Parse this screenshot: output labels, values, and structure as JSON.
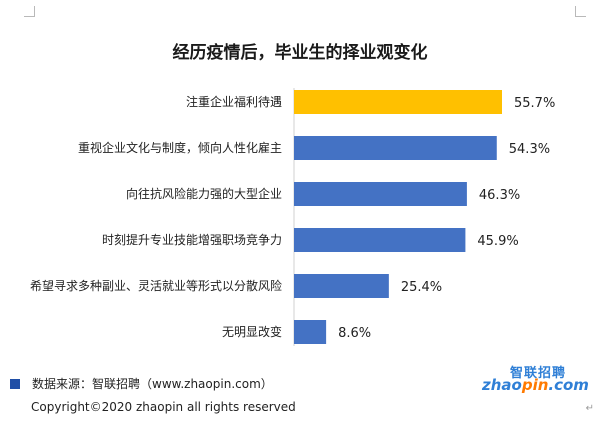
{
  "title": "经历疫情后，毕业生的择业观变化",
  "chart_data": {
    "type": "bar",
    "orientation": "horizontal",
    "categories": [
      "注重企业福利待遇",
      "重视企业文化与制度，倾向人性化雇主",
      "向往抗风险能力强的大型企业",
      "时刻提升专业技能增强职场竞争力",
      "希望寻求多种副业、灵活就业等形式以分散风险",
      "无明显改变"
    ],
    "values": [
      55.7,
      54.3,
      46.3,
      45.9,
      25.4,
      8.6
    ],
    "value_labels": [
      "55.7%",
      "54.3%",
      "46.3%",
      "45.9%",
      "25.4%",
      "8.6%"
    ],
    "highlight_index": 0,
    "colors": {
      "bar": "#4472c4",
      "highlight": "#ffc000"
    },
    "xlim": [
      0,
      60
    ],
    "grid": false,
    "legend": "none"
  },
  "footer": {
    "source": "数据来源：智联招聘（www.zhaopin.com）",
    "copyright": "Copyright©2020 zhaopin all rights reserved"
  },
  "logo": {
    "top": "智联招聘",
    "bottom_left": "zhao",
    "bottom_dot": "pin",
    "bottom_right": ".com"
  }
}
